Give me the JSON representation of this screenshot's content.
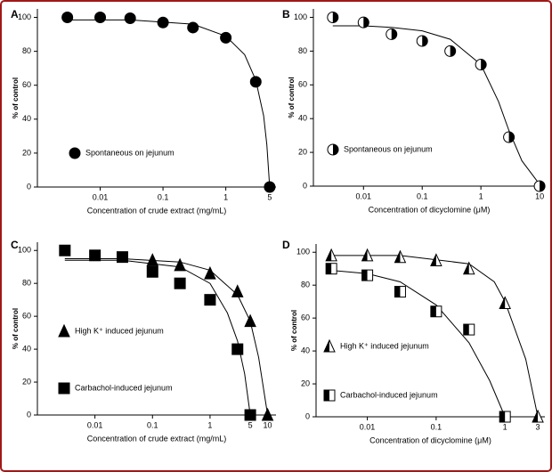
{
  "chart_data": [
    {
      "type": "scatter",
      "label": "A",
      "xlabel": "Concentration of crude extract (mg/mL)",
      "ylabel": "% of control",
      "xscale": "log",
      "xlim": [
        0.001,
        6.3
      ],
      "xticks": [
        0.01,
        0.1,
        1,
        5
      ],
      "ylim": [
        0,
        105
      ],
      "yticks": [
        0,
        20,
        40,
        60,
        80,
        100
      ],
      "series": [
        {
          "name": "Spontaneous on jejunum",
          "color": "#000000",
          "marker": "circle",
          "x": [
            0.003,
            0.01,
            0.03,
            0.1,
            0.3,
            1,
            3,
            5
          ],
          "values": [
            100,
            100,
            99.5,
            97,
            94,
            88,
            62,
            0
          ],
          "fit": {
            "x": [
              0.003,
              0.03,
              0.3,
              1,
              2,
              3,
              4,
              4.5,
              5
            ],
            "values": [
              98.5,
              98.5,
              96,
              89,
              78,
              63,
              42,
              25,
              0
            ]
          }
        }
      ]
    },
    {
      "type": "scatter",
      "label": "B",
      "xlabel": "Concentration of dicyclomine (μM)",
      "ylabel": "% of control",
      "xscale": "log",
      "xlim": [
        0.0014,
        12.3
      ],
      "xticks": [
        0.01,
        0.1,
        1,
        10
      ],
      "ylim": [
        0,
        105
      ],
      "yticks": [
        0,
        20,
        40,
        60,
        80,
        100
      ],
      "series": [
        {
          "name": "Spontaneous on jejunum",
          "color": "#000000",
          "marker": "half-circle",
          "x": [
            0.003,
            0.01,
            0.03,
            0.1,
            0.3,
            1,
            3,
            10
          ],
          "values": [
            100,
            97,
            90,
            86,
            80,
            72,
            29,
            0
          ],
          "fit": {
            "x": [
              0.003,
              0.01,
              0.03,
              0.1,
              0.3,
              1,
              2,
              3,
              5,
              10
            ],
            "values": [
              95,
              95,
              94,
              92,
              87,
              72,
              50,
              33,
              15,
              1
            ]
          }
        }
      ]
    },
    {
      "type": "scatter",
      "label": "C",
      "xlabel": "Concentration of crude extract (mg/mL)",
      "ylabel": "% of control",
      "xscale": "log",
      "xlim": [
        0.001,
        14
      ],
      "xticks": [
        0.01,
        0.1,
        1,
        5,
        10
      ],
      "ylim": [
        0,
        105
      ],
      "yticks": [
        0,
        20,
        40,
        60,
        80,
        100
      ],
      "series": [
        {
          "name": "High K⁺ induced jejunum",
          "color": "#000000",
          "marker": "triangle",
          "x": [
            0.1,
            0.3,
            1,
            3,
            5,
            10
          ],
          "values": [
            94,
            91,
            86,
            75,
            57,
            0
          ],
          "fit": {
            "x": [
              0.003,
              0.03,
              0.3,
              1,
              3,
              5,
              7,
              10
            ],
            "values": [
              95,
              95,
              93,
              88,
              73,
              57,
              35,
              0
            ]
          }
        },
        {
          "name": "Carbachol-induced jejunum",
          "color": "#000000",
          "marker": "square",
          "x": [
            0.003,
            0.01,
            0.03,
            0.1,
            0.3,
            1,
            3,
            5
          ],
          "values": [
            100,
            97,
            96,
            87,
            80,
            70,
            40,
            0
          ],
          "fit": {
            "x": [
              0.003,
              0.03,
              0.3,
              1,
              2,
              3,
              4,
              5
            ],
            "values": [
              94,
              94,
              90,
              80,
              62,
              45,
              25,
              0
            ]
          }
        }
      ]
    },
    {
      "type": "scatter",
      "label": "D",
      "xlabel": "Concentration of dicyclomine (μM)",
      "ylabel": "% of control",
      "xscale": "log",
      "xlim": [
        0.0018,
        3.8
      ],
      "xticks": [
        0.01,
        0.1,
        1,
        3
      ],
      "ylim": [
        0,
        105
      ],
      "yticks": [
        0,
        20,
        40,
        60,
        80,
        100
      ],
      "series": [
        {
          "name": "High K⁺ induced jejunum",
          "color": "#000000",
          "marker": "half-triangle",
          "x": [
            0.003,
            0.01,
            0.03,
            0.1,
            0.3,
            1,
            3
          ],
          "values": [
            98,
            98,
            97,
            95,
            90,
            69,
            0
          ],
          "fit": {
            "x": [
              0.003,
              0.03,
              0.3,
              0.7,
              1,
              2,
              3
            ],
            "values": [
              98,
              98,
              93,
              82,
              70,
              35,
              0
            ]
          }
        },
        {
          "name": "Carbachol-induced jejunum",
          "color": "#000000",
          "marker": "half-square",
          "x": [
            0.003,
            0.01,
            0.03,
            0.1,
            0.3,
            1
          ],
          "values": [
            90,
            86,
            76,
            64,
            53,
            0
          ],
          "fit": {
            "x": [
              0.003,
              0.01,
              0.03,
              0.1,
              0.3,
              0.6,
              1
            ],
            "values": [
              89,
              87,
              82,
              68,
              45,
              22,
              0
            ]
          }
        }
      ]
    }
  ]
}
